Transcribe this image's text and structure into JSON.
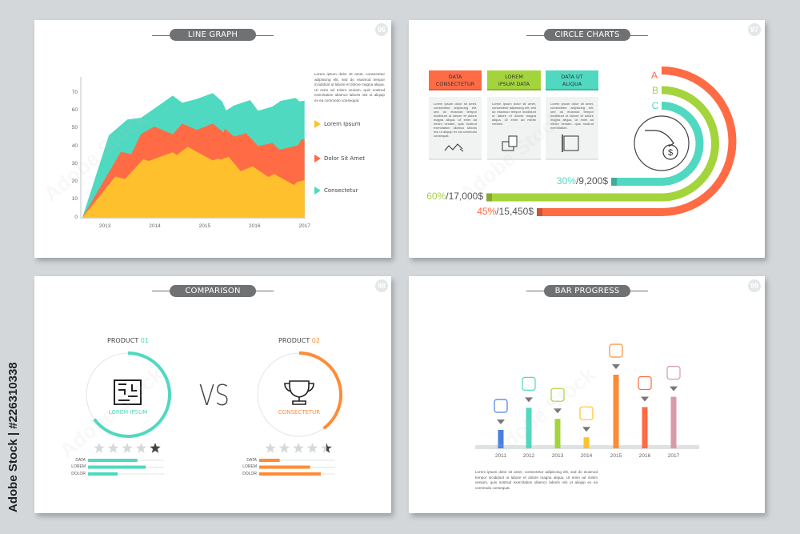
{
  "side_caption": "Adobe Stock | #226310338",
  "watermark": "Adobe Stock",
  "slides": [
    {
      "number": "96",
      "title": "LINE GRAPH",
      "text": "Lorem ipsum dolor sit amet, consectetur adipiscing elit, sed do eiusmod tempor incididunt ut labore et dolore magna aliqua. Ut enim ad minim veniam, quis nostrud exercitation ullamco laboris nisi ut aliquip ex ea commodo consequat."
    },
    {
      "number": "97",
      "title": "CIRCLE CHARTS",
      "boxes": [
        {
          "title_1": "DATA",
          "title_2": "CONSECTETUR",
          "color": "#ff6b45",
          "icon": "trend-arrows-icon",
          "text": "Lorem ipsum dolor sit amet, consectetur adipiscing elit, sed do eiusmod tempor incididunt ut labore et dolore magna aliqua. Ut enim ad minim veniam, quis nostrud exercitation ullamco laboris nisi ut aliquip ex ea commodo consequat."
        },
        {
          "title_1": "LOREM",
          "title_2": "IPSUM DATA",
          "color": "#a4d43c",
          "icon": "folder-documents-icon",
          "text": "Lorem ipsum dolor sit amet, consectetur adipiscing elit, sed do eiusmod tempor incididunt ut labore et dolore magna aliqua. Ut enim ad minim veniam."
        },
        {
          "title_1": "DATA UT",
          "title_2": "ALIQUA",
          "color": "#50d8c0",
          "icon": "blueprint-pencil-icon",
          "text": "Lorem ipsum dolor sit amet, consectetur adipiscing elit, sed do eiusmod tempor incididunt ut labore et dolore magna aliqua. Ut enim ad minim veniam, quis nostrud exercitation."
        }
      ],
      "center_icon": "hand-coin-dollar-icon"
    },
    {
      "number": "98",
      "title": "COMPARISON",
      "vs": "VS",
      "products": [
        {
          "label": "PRODUCT",
          "num": "01",
          "caption": "LOREM IPSUM",
          "color": "#50d8c0",
          "icon": "maze-icon",
          "ring_progress": 0.65,
          "dark_stars": 1,
          "stars_total": 5
        },
        {
          "label": "PRODUCT",
          "num": "02",
          "caption": "CONSECTETUR",
          "color": "#ff8c35",
          "icon": "trophy-icon",
          "ring_progress": 0.4,
          "dark_stars": 0.5,
          "stars_total": 5
        }
      ]
    },
    {
      "number": "99",
      "title": "BAR PROGRESS",
      "text": "Lorem ipsum dolor sit amet, consectetur adipiscing elit, sed do eiusmod tempor incididunt ut labore et dolore magna aliqua. Ut enim ad minim veniam, quis nostrud exercitation ullamco laboris nisi ut aliquip ex ea commodo consequat."
    }
  ],
  "chart_data": [
    {
      "type": "area",
      "stacked": true,
      "note_values": "cumulative top boundary of each stacked layer",
      "xlim": [
        2012.55,
        2017
      ],
      "ylim": [
        0,
        70
      ],
      "xticks": [
        "2013",
        "2014",
        "2015",
        "2016",
        "2017"
      ],
      "yticks": [
        "0",
        "10",
        "20",
        "30",
        "40",
        "50",
        "60",
        "70"
      ],
      "grid": false,
      "legend": "right",
      "series": [
        {
          "name": "Lorem Ipsum",
          "color": "#fec02c",
          "points": [
            [
              2012.55,
              0
            ],
            [
              2013.21,
              23
            ],
            [
              2013.4,
              21.5
            ],
            [
              2013.77,
              32.6
            ],
            [
              2013.88,
              31.7
            ],
            [
              2014.36,
              36.6
            ],
            [
              2014.44,
              35
            ],
            [
              2014.66,
              39.6
            ],
            [
              2015.16,
              32
            ],
            [
              2015.27,
              33
            ],
            [
              2015.32,
              32.5
            ],
            [
              2015.48,
              34
            ],
            [
              2015.72,
              26
            ],
            [
              2015.96,
              28.7
            ],
            [
              2016.28,
              22.7
            ],
            [
              2016.39,
              24.4
            ],
            [
              2016.79,
              18.2
            ],
            [
              2016.85,
              20
            ],
            [
              2017.0,
              21
            ]
          ]
        },
        {
          "name": "Dolor Sit Amet",
          "color": "#ff6b45",
          "points": [
            [
              2012.55,
              0
            ],
            [
              2013.32,
              36.8
            ],
            [
              2013.53,
              35.4
            ],
            [
              2013.72,
              46.6
            ],
            [
              2013.99,
              51
            ],
            [
              2014.36,
              46.6
            ],
            [
              2014.55,
              52.6
            ],
            [
              2014.84,
              49
            ],
            [
              2015.16,
              52.6
            ],
            [
              2015.38,
              47.5
            ],
            [
              2015.4,
              49.8
            ],
            [
              2015.59,
              45.3
            ],
            [
              2015.83,
              47.2
            ],
            [
              2016.07,
              40
            ],
            [
              2016.36,
              41.8
            ],
            [
              2016.5,
              38
            ],
            [
              2016.87,
              40.4
            ],
            [
              2016.93,
              43.6
            ],
            [
              2017.0,
              43.8
            ]
          ]
        },
        {
          "name": "Consectetur",
          "color": "#4fd9c0",
          "points": [
            [
              2012.55,
              0
            ],
            [
              2013.08,
              46
            ],
            [
              2013.45,
              54.9
            ],
            [
              2013.72,
              55.8
            ],
            [
              2013.99,
              61
            ],
            [
              2014.36,
              68.3
            ],
            [
              2014.55,
              64.3
            ],
            [
              2014.84,
              66.4
            ],
            [
              2015.16,
              69.7
            ],
            [
              2015.35,
              65
            ],
            [
              2015.43,
              60
            ],
            [
              2015.59,
              62.8
            ],
            [
              2015.91,
              65.8
            ],
            [
              2016.07,
              59.8
            ],
            [
              2016.36,
              62.2
            ],
            [
              2016.52,
              65.3
            ],
            [
              2016.82,
              67
            ],
            [
              2016.9,
              65
            ],
            [
              2017.0,
              65.5
            ]
          ]
        }
      ]
    },
    {
      "type": "bar",
      "subtype": "concentric-arc-progress",
      "series": [
        {
          "name": "A",
          "percent": "45%",
          "amount": "/15,450$",
          "value": 45,
          "color": "#ff6b45"
        },
        {
          "name": "B",
          "percent": "60%",
          "amount": "/17,000$",
          "value": 60,
          "color": "#a4d43c"
        },
        {
          "name": "C",
          "percent": "30%",
          "amount": "/9,200$",
          "value": 30,
          "color": "#50d8c0"
        }
      ]
    },
    {
      "type": "bar",
      "subtype": "horizontal-progress",
      "categories": [
        "DATA",
        "LOREM",
        "DOLOR"
      ],
      "series": [
        {
          "product": "PRODUCT 01",
          "values": [
            65,
            76,
            39
          ],
          "color": "#50d8c0"
        },
        {
          "product": "PRODUCT 02",
          "values": [
            27,
            67,
            81
          ],
          "color": "#ff8c35"
        }
      ],
      "ylim": [
        0,
        100
      ]
    },
    {
      "type": "bar",
      "categories": [
        "2011",
        "2012",
        "2013",
        "2014",
        "2015",
        "2016",
        "2017"
      ],
      "values": [
        25,
        55,
        40,
        15,
        100,
        56,
        70
      ],
      "ylim": [
        0,
        100
      ],
      "colors": [
        "#4a7fe0",
        "#50d8c0",
        "#a4d43c",
        "#ffc12e",
        "#ff8c35",
        "#ff6b45",
        "#d89aa6"
      ],
      "icons": [
        "scroll-heart-icon",
        "diamond-icon",
        "keyboard-icon",
        "pointing-hand-icon",
        "folder-documents-icon",
        "falling-coin-icon",
        "gear-dollar-icon"
      ]
    }
  ]
}
